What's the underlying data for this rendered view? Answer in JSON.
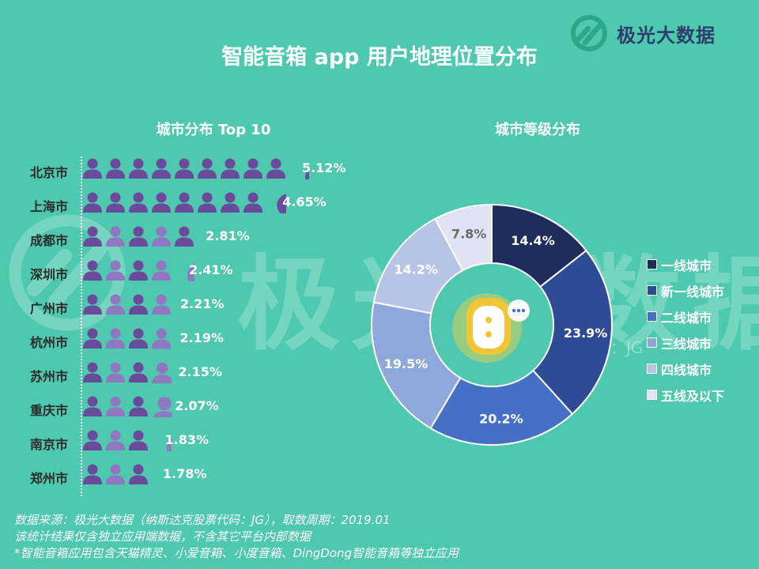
{
  "header": {
    "title": "智能音箱 app 用户地理位置分布",
    "brand_name": "极光大数据"
  },
  "watermark": {
    "text": "极光大数据",
    "sub": "纳斯达克股票代码：JG"
  },
  "left_panel": {
    "subtitle": "城市分布 Top 10"
  },
  "right_panel": {
    "subtitle": "城市等级分布"
  },
  "colors": {
    "background": "#4ec9b0",
    "person_dark": "#6a4a9a",
    "person_light": "#8f78bf",
    "brand_text": "#2f3d6b"
  },
  "footnotes": {
    "line1": "数据来源：极光大数据（纳斯达克股票代码：JG），取数周期：2019.01",
    "line2": "该统计结果仅含独立应用端数据，不含其它平台内部数据",
    "line3": "*智能音箱应用包含天猫精灵、小爱音箱、小度音箱、DingDong智能音箱等独立应用"
  },
  "chart_data": [
    {
      "type": "bar",
      "title": "城市分布 Top 10",
      "categories": [
        "北京市",
        "上海市",
        "成都市",
        "深圳市",
        "广州市",
        "杭州市",
        "苏州市",
        "重庆市",
        "南京市",
        "郑州市"
      ],
      "values": [
        5.12,
        4.65,
        2.81,
        2.41,
        2.21,
        2.19,
        2.15,
        2.07,
        1.83,
        1.78
      ],
      "value_labels": [
        "5.12%",
        "4.65%",
        "2.81%",
        "2.41%",
        "2.21%",
        "2.19%",
        "2.15%",
        "2.07%",
        "1.83%",
        "1.78%"
      ],
      "unit_per_icon": 0.55,
      "mark": "person-icons"
    },
    {
      "type": "pie",
      "title": "城市等级分布",
      "donut": true,
      "categories": [
        "一线城市",
        "新一线城市",
        "二线城市",
        "三线城市",
        "四线城市",
        "五线及以下"
      ],
      "values": [
        14.4,
        23.9,
        20.2,
        19.5,
        14.2,
        7.8
      ],
      "value_labels": [
        "14.4%",
        "23.9%",
        "20.2%",
        "19.5%",
        "14.2%",
        "7.8%"
      ],
      "colors": [
        "#1f2d5c",
        "#2f4b96",
        "#4670c6",
        "#8ea8dc",
        "#b7c4e6",
        "#dfe3f3"
      ],
      "label_colors": [
        "#ffffff",
        "#ffffff",
        "#ffffff",
        "#ffffff",
        "#ffffff",
        "#6a6a6a"
      ],
      "legend_position": "right"
    }
  ]
}
